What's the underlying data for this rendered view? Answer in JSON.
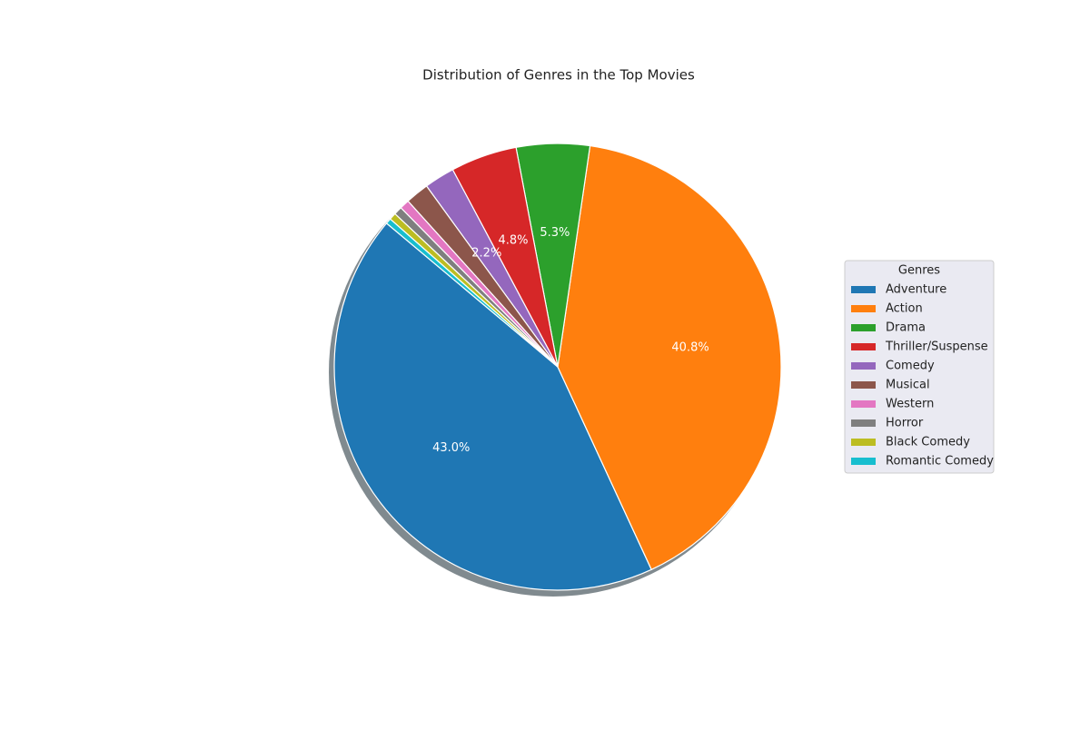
{
  "chart_data": {
    "type": "pie",
    "title": "Distribution of Genres in the Top Movies",
    "legend_title": "Genres",
    "categories": [
      "Adventure",
      "Action",
      "Drama",
      "Thriller/Suspense",
      "Comedy",
      "Musical",
      "Western",
      "Horror",
      "Black Comedy",
      "Romantic Comedy"
    ],
    "values": [
      43.0,
      40.8,
      5.3,
      4.8,
      2.2,
      1.7,
      0.7,
      0.6,
      0.5,
      0.4
    ],
    "value_labels": [
      "43.0%",
      "40.8%",
      "5.3%",
      "4.8%",
      "2.2%",
      null,
      null,
      null,
      null,
      null
    ],
    "colors": [
      "#1f77b4",
      "#ff7f0e",
      "#2ca02c",
      "#d62728",
      "#9467bd",
      "#8c564b",
      "#e377c2",
      "#7f7f7f",
      "#bcbd22",
      "#17becf"
    ],
    "legend": "right"
  }
}
